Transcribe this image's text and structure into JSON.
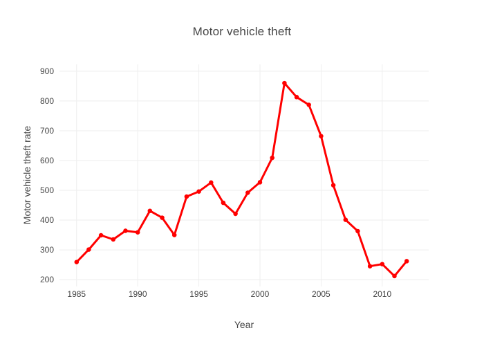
{
  "chart_data": {
    "type": "line",
    "title": "Motor vehicle theft",
    "xlabel": "Year",
    "ylabel": "Motor vehicle theft rate",
    "series": [
      {
        "name": "Motor vehicle theft rate",
        "x": [
          1985,
          1986,
          1987,
          1988,
          1989,
          1990,
          1991,
          1992,
          1993,
          1994,
          1995,
          1996,
          1997,
          1998,
          1999,
          2000,
          2001,
          2002,
          2003,
          2004,
          2005,
          2006,
          2007,
          2008,
          2009,
          2010,
          2011,
          2012
        ],
        "y": [
          259,
          301,
          349,
          335,
          364,
          359,
          431,
          408,
          350,
          479,
          496,
          526,
          458,
          421,
          492,
          527,
          609,
          860,
          813,
          787,
          682,
          517,
          401,
          363,
          245,
          252,
          212,
          262
        ]
      }
    ],
    "x_ticks": [
      1985,
      1990,
      1995,
      2000,
      2005,
      2010
    ],
    "y_ticks": [
      200,
      300,
      400,
      500,
      600,
      700,
      800,
      900
    ],
    "x_range": [
      1983.6,
      2013.8
    ],
    "y_range": [
      177,
      923
    ],
    "grid": true,
    "legend_position": "none",
    "colors": {
      "line": "#ff0000",
      "marker": "#ff0000",
      "grid": "#eeeeee",
      "text": "#444444",
      "background": "#ffffff"
    },
    "marker_size": 6.5,
    "line_width": 3
  }
}
